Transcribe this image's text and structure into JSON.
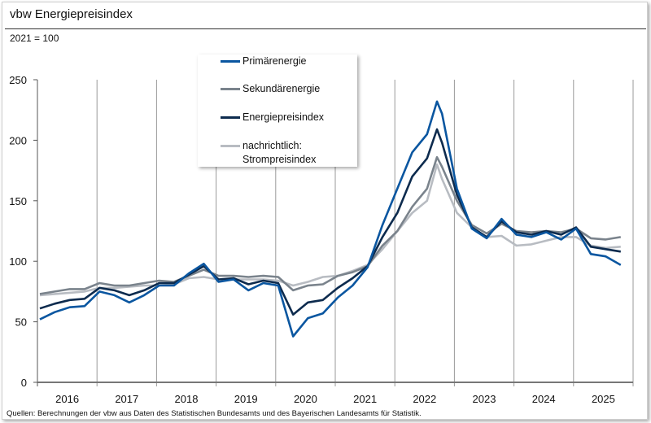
{
  "header": {
    "title": "vbw Energiepreisindex",
    "subtitle": "2021 = 100"
  },
  "footer": {
    "source": "Quellen: Berechnungen der vbw aus Daten des Statistischen Bundesamts und des Bayerischen Landesamts für Statistik."
  },
  "chart_data": {
    "type": "line",
    "title": "vbw Energiepreisindex",
    "subtitle": "2021 = 100",
    "xlabel": "",
    "ylabel": "",
    "ylim": [
      0,
      250
    ],
    "yticks": [
      0,
      50,
      100,
      150,
      200,
      250
    ],
    "xtick_labels": [
      "2016",
      "2017",
      "2018",
      "2019",
      "2020",
      "2021",
      "2022",
      "2023",
      "2024",
      "2025"
    ],
    "grid": "vertical lines at year boundaries",
    "legend_position": "top-center",
    "x": [
      "2016-01",
      "2016-04",
      "2016-07",
      "2016-10",
      "2017-01",
      "2017-04",
      "2017-07",
      "2017-10",
      "2018-01",
      "2018-04",
      "2018-07",
      "2018-10",
      "2019-01",
      "2019-04",
      "2019-07",
      "2019-10",
      "2020-01",
      "2020-04",
      "2020-07",
      "2020-10",
      "2021-01",
      "2021-04",
      "2021-07",
      "2021-10",
      "2022-01",
      "2022-04",
      "2022-07",
      "2022-09",
      "2022-10",
      "2023-01",
      "2023-04",
      "2023-07",
      "2023-10",
      "2024-01",
      "2024-04",
      "2024-07",
      "2024-10",
      "2025-01",
      "2025-04",
      "2025-07",
      "2025-10"
    ],
    "series": [
      {
        "name": "Primärenergie",
        "color": "#0a56a0",
        "values": [
          52,
          58,
          62,
          63,
          75,
          72,
          66,
          72,
          80,
          80,
          90,
          98,
          83,
          85,
          76,
          82,
          80,
          38,
          53,
          57,
          70,
          80,
          95,
          130,
          160,
          190,
          205,
          232,
          222,
          160,
          127,
          119,
          135,
          122,
          120,
          124,
          118,
          127,
          106,
          104,
          97
        ]
      },
      {
        "name": "Sekundärenergie",
        "color": "#7a838c",
        "values": [
          73,
          75,
          77,
          77,
          82,
          80,
          80,
          82,
          84,
          83,
          88,
          93,
          88,
          88,
          87,
          88,
          87,
          76,
          80,
          81,
          88,
          91,
          96,
          113,
          125,
          145,
          160,
          186,
          178,
          150,
          130,
          123,
          131,
          125,
          124,
          125,
          124,
          127,
          119,
          118,
          120
        ]
      },
      {
        "name": "Energiepreisindex",
        "color": "#0d2b4e",
        "values": [
          61,
          65,
          68,
          69,
          78,
          76,
          72,
          76,
          82,
          82,
          89,
          96,
          85,
          86,
          81,
          84,
          82,
          56,
          66,
          68,
          78,
          86,
          96,
          120,
          140,
          170,
          185,
          209,
          198,
          155,
          128,
          120,
          133,
          124,
          122,
          125,
          122,
          128,
          112,
          110,
          108
        ]
      },
      {
        "name": "nachrichtlich: Strompreisindex",
        "color": "#b8bcc2",
        "values": [
          72,
          73,
          74,
          75,
          78,
          78,
          79,
          80,
          80,
          81,
          86,
          87,
          85,
          85,
          85,
          85,
          84,
          80,
          83,
          87,
          88,
          92,
          97,
          110,
          125,
          140,
          150,
          180,
          168,
          140,
          128,
          120,
          121,
          113,
          114,
          117,
          120,
          120,
          113,
          111,
          112
        ]
      }
    ]
  },
  "legend": {
    "items": [
      "Primärenergie",
      "Sekundärenergie",
      "Energiepreisindex",
      "nachrichtlich:",
      "Strompreisindex"
    ]
  }
}
